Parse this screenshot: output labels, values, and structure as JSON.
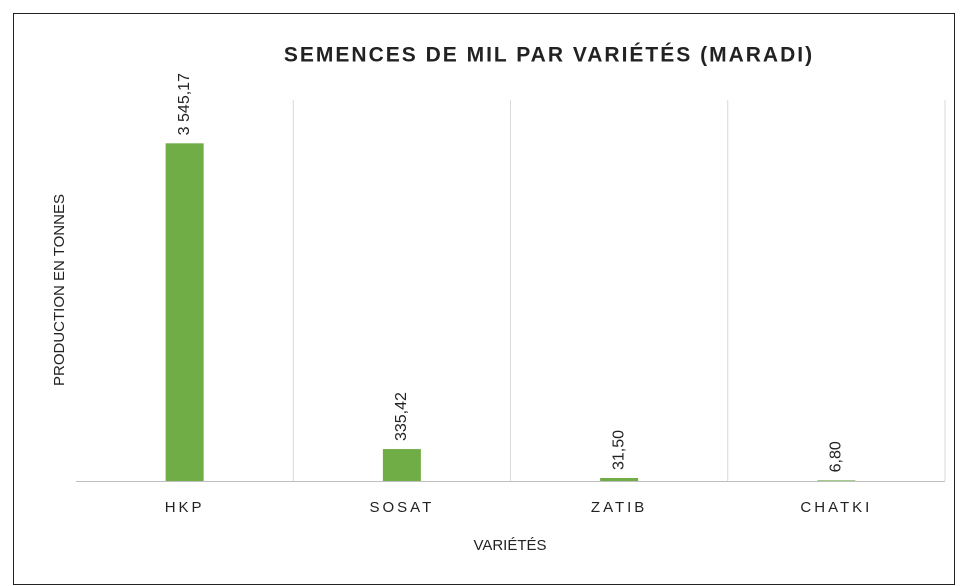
{
  "chart_data": {
    "type": "bar",
    "title": "SEMENCES DE MIL PAR VARIÉTÉS (MARADI)",
    "x_label": "VARIÉTÉS",
    "y_label": "PRODUCTION EN TONNES",
    "categories": [
      "HKP",
      "SOSAT",
      "ZATIB",
      "CHATKI"
    ],
    "values": [
      3545.17,
      335.42,
      31.5,
      6.8
    ],
    "value_labels": [
      "3 545,17",
      "335,42",
      "31,50",
      "6,80"
    ],
    "color": "#70ad47",
    "ylim": [
      0,
      4000
    ],
    "grid": true
  }
}
